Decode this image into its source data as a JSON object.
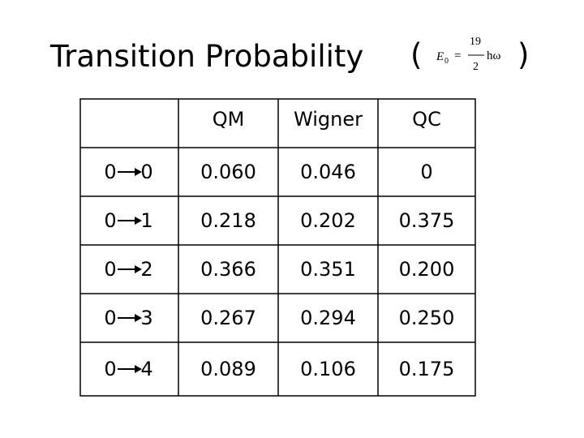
{
  "title": {
    "text": "Transition Probability",
    "open": "(",
    "close": ")",
    "formula": {
      "lhs": "E",
      "sub": "0",
      "eq": "=",
      "num": "19",
      "den": "2",
      "rhs": "hω"
    }
  },
  "table": {
    "headers": [
      "QM",
      "Wigner",
      "QC"
    ],
    "rows": [
      {
        "from": "0",
        "to": "0",
        "cells": [
          "0.060",
          "0.046",
          "0"
        ]
      },
      {
        "from": "0",
        "to": "1",
        "cells": [
          "0.218",
          "0.202",
          "0.375"
        ]
      },
      {
        "from": "0",
        "to": "2",
        "cells": [
          "0.366",
          "0.351",
          "0.200"
        ]
      },
      {
        "from": "0",
        "to": "3",
        "cells": [
          "0.267",
          "0.294",
          "0.250"
        ]
      },
      {
        "from": "0",
        "to": "4",
        "cells": [
          "0.089",
          "0.106",
          "0.175"
        ]
      }
    ]
  }
}
